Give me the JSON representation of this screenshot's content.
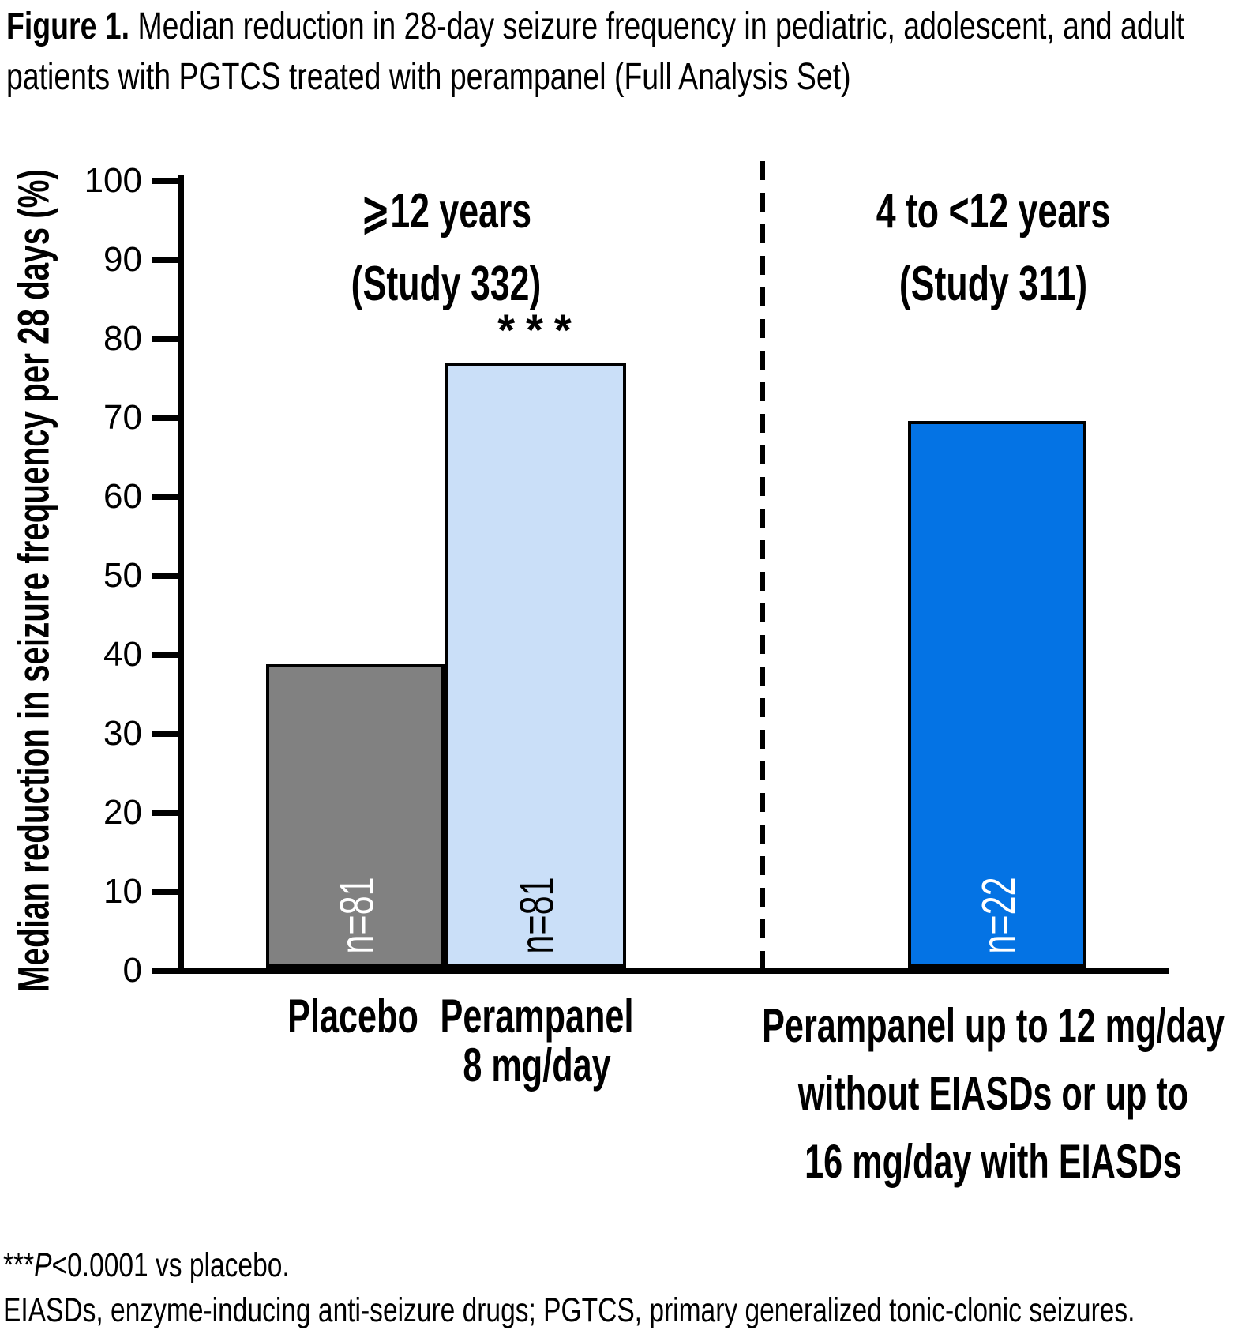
{
  "title": {
    "prefix": "Figure 1.",
    "rest": " Median reduction in 28-day seizure frequency in pediatric, adolescent, and adult patients with PGTCS treated with perampanel (Full Analysis Set)"
  },
  "chart_data": {
    "type": "bar",
    "title": "Median reduction in 28-day seizure frequency in pediatric, adolescent, and adult patients with PGTCS treated with perampanel (Full Analysis Set)",
    "ylabel": "Median reduction in seizure frequency per 28 days (%)",
    "xlabel": "",
    "ylim": [
      0,
      100
    ],
    "yticks": [
      0,
      10,
      20,
      30,
      40,
      50,
      60,
      70,
      80,
      90,
      100
    ],
    "grid": false,
    "legend": "none",
    "groups": [
      {
        "line1": "⩾12 years",
        "line2": "(Study 332)"
      },
      {
        "line1": "4 to <12 years",
        "line2": "(Study 311)"
      }
    ],
    "bars": [
      {
        "category": "Placebo",
        "value": 38.4,
        "n_label": "n=81",
        "fill": "#818181",
        "n_text_color": "#FFFFFF",
        "group": 0,
        "significance": ""
      },
      {
        "category": "Perampanel 8 mg/day",
        "value": 76.5,
        "n_label": "n=81",
        "fill": "#CADFF8",
        "n_text_color": "#000000",
        "group": 0,
        "significance": "***"
      },
      {
        "category": "Perampanel up to 12 mg/day without EIASDs or up to 16 mg/day with EIASDs",
        "value": 69.2,
        "n_label": "n=22",
        "fill": "#0473E4",
        "n_text_color": "#FFFFFF",
        "group": 1,
        "significance": ""
      }
    ],
    "axis_color": "#000000"
  },
  "xlabels": {
    "bar0_line1": "Placebo",
    "bar1_line1": "Perampanel",
    "bar1_line2": "8 mg/day",
    "bar2_line1": "Perampanel up to 12 mg/day",
    "bar2_line2": "without EIASDs or up to",
    "bar2_line3": "16 mg/day with EIASDs"
  },
  "footnotes": {
    "line1_stars": "***",
    "line1_p": "P",
    "line1_rest": "<0.0001 vs placebo.",
    "line2": "EIASDs, enzyme-inducing anti-seizure drugs; PGTCS, primary generalized tonic-clonic seizures."
  }
}
